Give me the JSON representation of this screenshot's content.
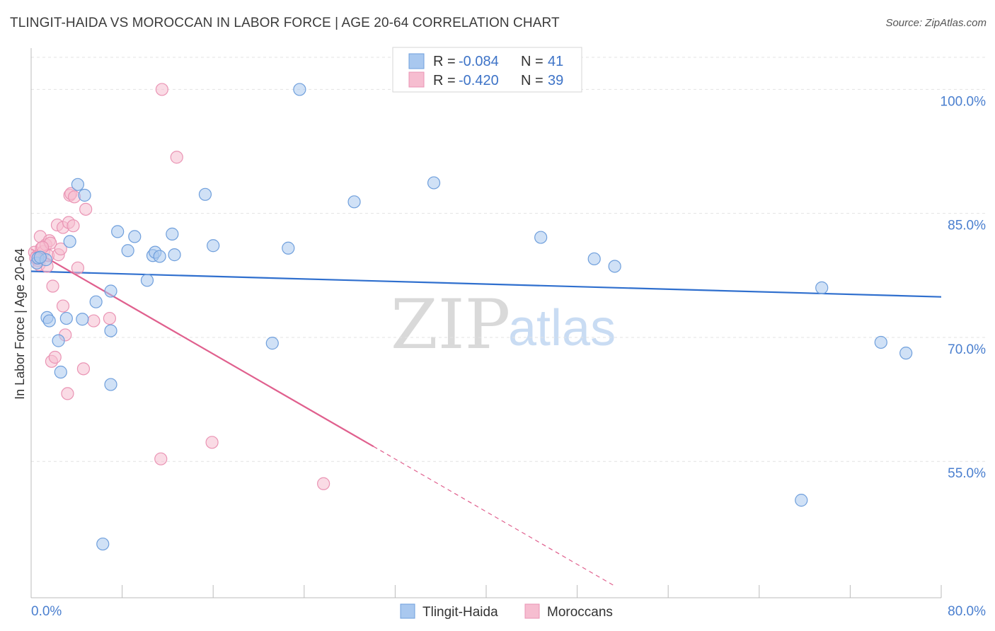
{
  "header": {
    "title": "TLINGIT-HAIDA VS MOROCCAN IN LABOR FORCE | AGE 20-64 CORRELATION CHART",
    "source": "Source: ZipAtlas.com"
  },
  "legend": {
    "rows": [
      {
        "r_label": "R =",
        "r_value": "-0.084",
        "n_label": "N =",
        "n_value": "41"
      },
      {
        "r_label": "R =",
        "r_value": "-0.420",
        "n_label": "N =",
        "n_value": "39"
      }
    ]
  },
  "bottom_legend": [
    "Tlingit-Haida",
    "Moroccans"
  ],
  "watermark": {
    "zip": "ZIP",
    "atlas": "atlas"
  },
  "colors": {
    "blue_fill": "#a9c8ef",
    "blue_stroke": "#6f9fdc",
    "blue_line": "#2f6fce",
    "pink_fill": "#f6bdd0",
    "pink_stroke": "#ea94b4",
    "pink_line": "#e0608e",
    "grid": "#e3e3e3",
    "tick_text": "#4a7fcf"
  },
  "chart_data": {
    "type": "scatter",
    "title": "TLINGIT-HAIDA VS MOROCCAN IN LABOR FORCE | AGE 20-64 CORRELATION CHART",
    "xlabel": "",
    "ylabel": "In Labor Force | Age 20-64",
    "xlim": [
      0,
      80
    ],
    "ylim": [
      38.5,
      105
    ],
    "x_tick_labels": [
      {
        "value": 0,
        "label": "0.0%"
      },
      {
        "value": 80,
        "label": "80.0%"
      }
    ],
    "y_ticks": [
      {
        "value": 55,
        "label": "55.0%"
      },
      {
        "value": 70,
        "label": "70.0%"
      },
      {
        "value": 85,
        "label": "85.0%"
      },
      {
        "value": 100,
        "label": "100.0%"
      }
    ],
    "series": [
      {
        "name": "Tlingit-Haida",
        "color": "#a9c8ef",
        "r": -0.084,
        "n": 41,
        "trend": {
          "x": [
            0,
            80
          ],
          "y": [
            78.0,
            74.9
          ],
          "dashed_from": null
        },
        "points": [
          [
            0.5,
            79.0
          ],
          [
            0.6,
            79.6
          ],
          [
            1.3,
            79.4
          ],
          [
            1.4,
            72.4
          ],
          [
            1.6,
            72.0
          ],
          [
            2.4,
            69.6
          ],
          [
            2.6,
            65.8
          ],
          [
            3.1,
            72.3
          ],
          [
            3.4,
            81.6
          ],
          [
            4.1,
            88.5
          ],
          [
            4.5,
            72.2
          ],
          [
            4.7,
            87.2
          ],
          [
            5.7,
            74.3
          ],
          [
            6.3,
            45.0
          ],
          [
            7.0,
            64.3
          ],
          [
            7.0,
            75.6
          ],
          [
            7.0,
            70.8
          ],
          [
            7.6,
            82.8
          ],
          [
            8.5,
            80.5
          ],
          [
            9.1,
            82.2
          ],
          [
            10.2,
            76.9
          ],
          [
            10.7,
            79.9
          ],
          [
            10.9,
            80.3
          ],
          [
            11.3,
            79.8
          ],
          [
            12.4,
            82.5
          ],
          [
            12.6,
            80.0
          ],
          [
            15.3,
            87.3
          ],
          [
            16.0,
            81.1
          ],
          [
            21.2,
            69.3
          ],
          [
            22.6,
            80.8
          ],
          [
            23.6,
            100.0
          ],
          [
            28.4,
            86.4
          ],
          [
            35.4,
            88.7
          ],
          [
            44.8,
            82.1
          ],
          [
            49.5,
            79.5
          ],
          [
            51.3,
            78.6
          ],
          [
            67.7,
            50.3
          ],
          [
            69.5,
            76.0
          ],
          [
            74.7,
            69.4
          ],
          [
            76.9,
            68.1
          ],
          [
            0.8,
            79.7
          ]
        ]
      },
      {
        "name": "Moroccans",
        "color": "#f6bdd0",
        "r": -0.42,
        "n": 39,
        "trend": {
          "x": [
            0,
            30.1,
            51.2
          ],
          "y": [
            80.7,
            56.8,
            40.0
          ],
          "dashed_from": 30.1
        },
        "points": [
          [
            0.3,
            80.3
          ],
          [
            0.5,
            79.8
          ],
          [
            0.6,
            79.3
          ],
          [
            0.7,
            78.8
          ],
          [
            0.8,
            82.2
          ],
          [
            0.9,
            80.8
          ],
          [
            1.1,
            80.4
          ],
          [
            1.3,
            81.2
          ],
          [
            1.4,
            78.6
          ],
          [
            1.5,
            79.9
          ],
          [
            1.6,
            81.7
          ],
          [
            1.7,
            81.4
          ],
          [
            1.8,
            67.1
          ],
          [
            1.9,
            76.2
          ],
          [
            2.1,
            67.6
          ],
          [
            2.3,
            83.6
          ],
          [
            2.4,
            80.0
          ],
          [
            2.6,
            80.7
          ],
          [
            2.8,
            73.8
          ],
          [
            2.8,
            83.3
          ],
          [
            3.0,
            70.3
          ],
          [
            3.2,
            63.2
          ],
          [
            3.3,
            83.9
          ],
          [
            3.4,
            87.2
          ],
          [
            3.5,
            87.4
          ],
          [
            3.7,
            83.5
          ],
          [
            3.8,
            87.0
          ],
          [
            4.1,
            78.4
          ],
          [
            4.6,
            66.2
          ],
          [
            4.8,
            85.5
          ],
          [
            5.5,
            72.0
          ],
          [
            6.9,
            72.3
          ],
          [
            11.4,
            55.3
          ],
          [
            11.5,
            100.0
          ],
          [
            12.8,
            91.8
          ],
          [
            15.9,
            57.3
          ],
          [
            25.7,
            52.3
          ],
          [
            0.4,
            79.6
          ],
          [
            1.0,
            80.9
          ]
        ]
      }
    ]
  }
}
